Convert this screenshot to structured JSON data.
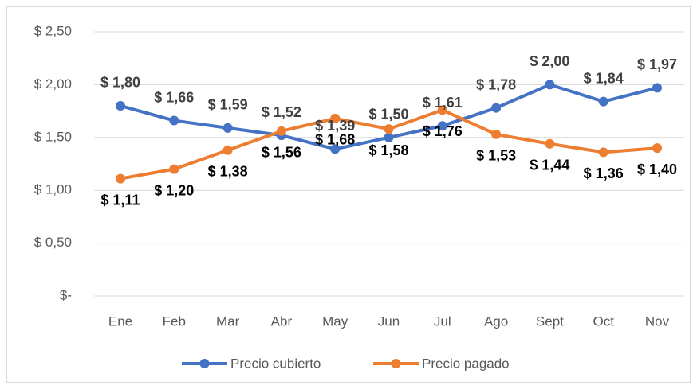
{
  "chart_data": {
    "type": "line",
    "categories": [
      "Ene",
      "Feb",
      "Mar",
      "Abr",
      "May",
      "Jun",
      "Jul",
      "Ago",
      "Sept",
      "Oct",
      "Nov"
    ],
    "series": [
      {
        "name": "Precio cubierto",
        "color": "#4472c4",
        "values": [
          1.8,
          1.66,
          1.59,
          1.52,
          1.39,
          1.5,
          1.61,
          1.78,
          2.0,
          1.84,
          1.97
        ],
        "value_labels": [
          "$ 1,80",
          "$ 1,66",
          "$ 1,59",
          "$ 1,52",
          "$ 1,39",
          "$ 1,50",
          "$ 1,61",
          "$ 1,78",
          "$ 2,00",
          "$ 1,84",
          "$ 1,97"
        ]
      },
      {
        "name": "Precio pagado",
        "color": "#ed7d31",
        "values": [
          1.11,
          1.2,
          1.38,
          1.56,
          1.68,
          1.58,
          1.76,
          1.53,
          1.44,
          1.36,
          1.4
        ],
        "value_labels": [
          "$ 1,11",
          "$ 1,20",
          "$ 1,38",
          "$ 1,56",
          "$ 1,68",
          "$ 1,58",
          "$ 1,76",
          "$ 1,53",
          "$ 1,44",
          "$ 1,36",
          "$ 1,40"
        ]
      }
    ],
    "ylim": [
      0,
      2.5
    ],
    "yticks": [
      {
        "value": 0,
        "label": "$-"
      },
      {
        "value": 0.5,
        "label": "$ 0,50"
      },
      {
        "value": 1,
        "label": "$ 1,00"
      },
      {
        "value": 1.5,
        "label": "$ 1,50"
      },
      {
        "value": 2,
        "label": "$ 2,00"
      },
      {
        "value": 2.5,
        "label": "$ 2,50"
      }
    ],
    "grid": true,
    "legend": "bottom"
  }
}
